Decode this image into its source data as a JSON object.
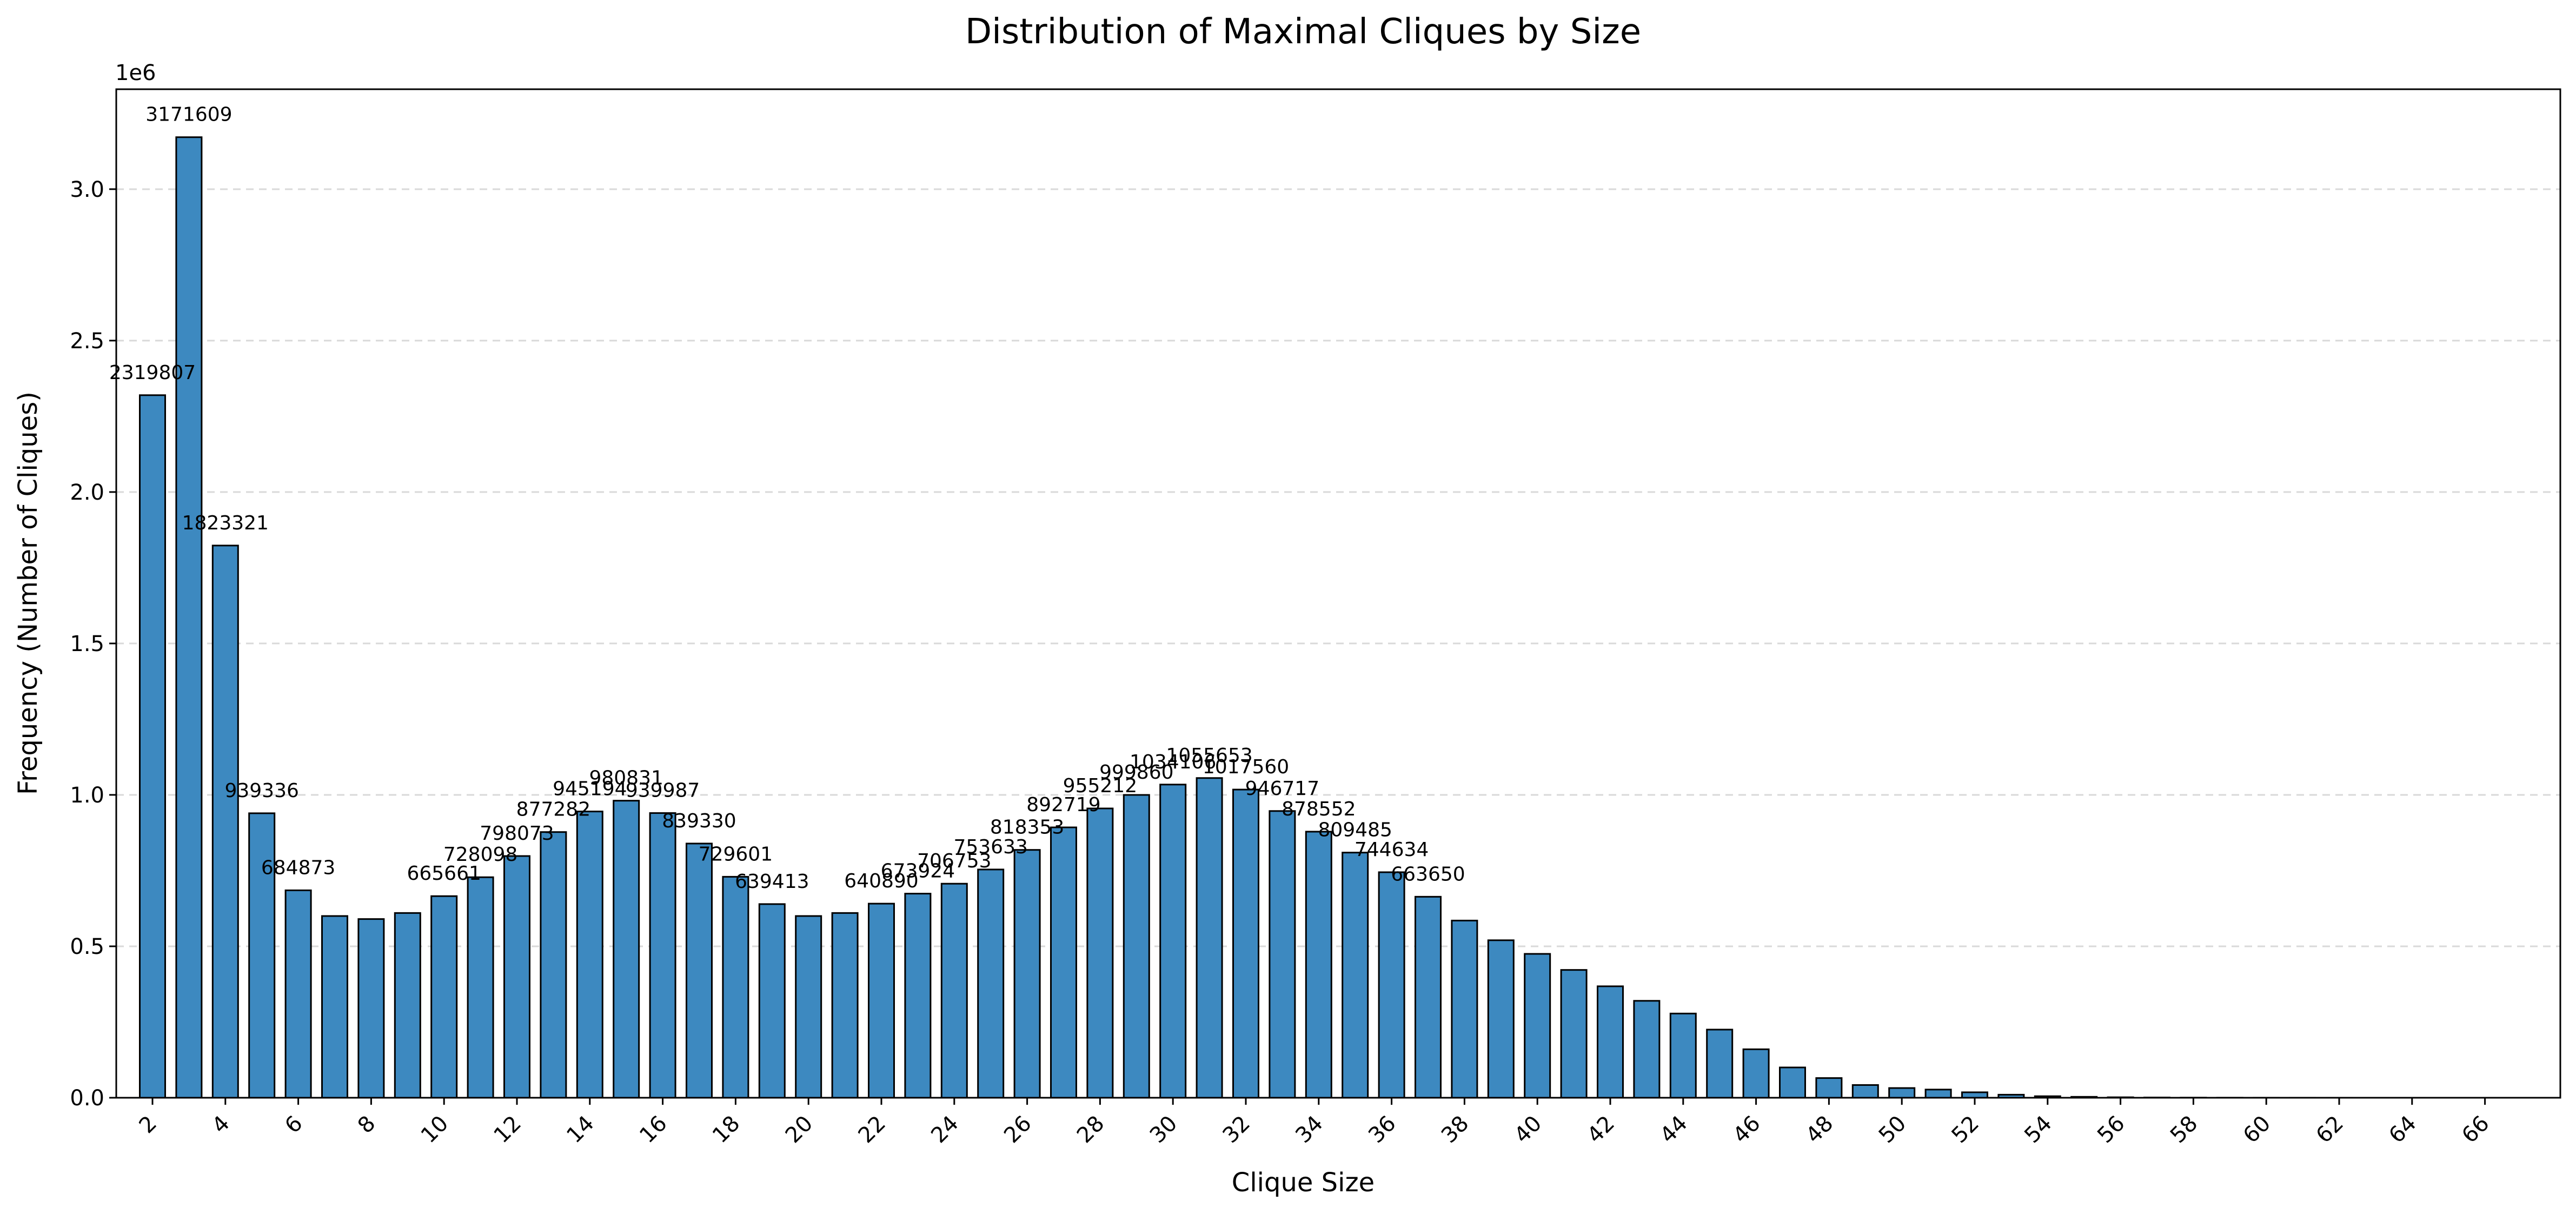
{
  "chart_data": {
    "type": "bar",
    "title": "Distribution of Maximal Cliques by Size",
    "xlabel": "Clique Size",
    "ylabel": "Frequency (Number of Cliques)",
    "y_offset_text": "1e6",
    "ylim": [
      0,
      3330000
    ],
    "y_ticks": [
      0,
      500000,
      1000000,
      1500000,
      2000000,
      2500000,
      3000000
    ],
    "y_tick_labels": [
      "0.0",
      "0.5",
      "1.0",
      "1.5",
      "2.0",
      "2.5",
      "3.0"
    ],
    "x_tick_labels": [
      "2",
      "4",
      "6",
      "8",
      "10",
      "12",
      "14",
      "16",
      "18",
      "20",
      "22",
      "24",
      "26",
      "28",
      "30",
      "32",
      "34",
      "36",
      "38",
      "40",
      "42",
      "44",
      "46",
      "48",
      "50",
      "52",
      "54",
      "56",
      "58",
      "60",
      "62",
      "64",
      "66"
    ],
    "grid": "y-dashed",
    "bar_color": "#3d89c0",
    "edge_color": "#000000",
    "categories": [
      2,
      3,
      4,
      5,
      6,
      7,
      8,
      9,
      10,
      11,
      12,
      13,
      14,
      15,
      16,
      17,
      18,
      19,
      20,
      21,
      22,
      23,
      24,
      25,
      26,
      27,
      28,
      29,
      30,
      31,
      32,
      33,
      34,
      35,
      36,
      37,
      38,
      39,
      40,
      41,
      42,
      43,
      44,
      45,
      46,
      47,
      48,
      49,
      50,
      51,
      52,
      53,
      54,
      55,
      56,
      57,
      58,
      59,
      60,
      61,
      62,
      63,
      64,
      65,
      66,
      67
    ],
    "values": [
      2319807,
      3171609,
      1823321,
      939336,
      684873,
      600000,
      590000,
      610000,
      665661,
      728098,
      798073,
      877282,
      945194,
      980831,
      939987,
      839330,
      729601,
      639413,
      600000,
      610000,
      640890,
      673924,
      706753,
      753633,
      818353,
      892719,
      955212,
      999860,
      1034106,
      1055653,
      1017560,
      946717,
      878552,
      809485,
      744634,
      663650,
      585000,
      520000,
      475000,
      422000,
      368000,
      320000,
      278000,
      225000,
      160000,
      100000,
      65000,
      42000,
      32000,
      27000,
      18000,
      10000,
      5000,
      3000,
      1500,
      800,
      400,
      200,
      100,
      50,
      25,
      12,
      6,
      3,
      2,
      1
    ],
    "labeled_values": [
      "2319807",
      "3171609",
      "1823321",
      "939336",
      "684873",
      "",
      "",
      "",
      "665661",
      "728098",
      "798073",
      "877282",
      "945194",
      "980831",
      "939987",
      "839330",
      "729601",
      "639413",
      "",
      "",
      "640890",
      "673924",
      "706753",
      "753633",
      "818353",
      "892719",
      "955212",
      "999860",
      "1034106",
      "1055653",
      "1017560",
      "946717",
      "878552",
      "809485",
      "744634",
      "663650",
      "",
      "",
      "",
      "",
      "",
      "",
      "",
      "",
      "",
      "",
      "",
      "",
      "",
      "",
      "",
      "",
      "",
      "",
      "",
      "",
      "",
      "",
      "",
      "",
      "",
      "",
      "",
      "",
      "",
      ""
    ]
  }
}
